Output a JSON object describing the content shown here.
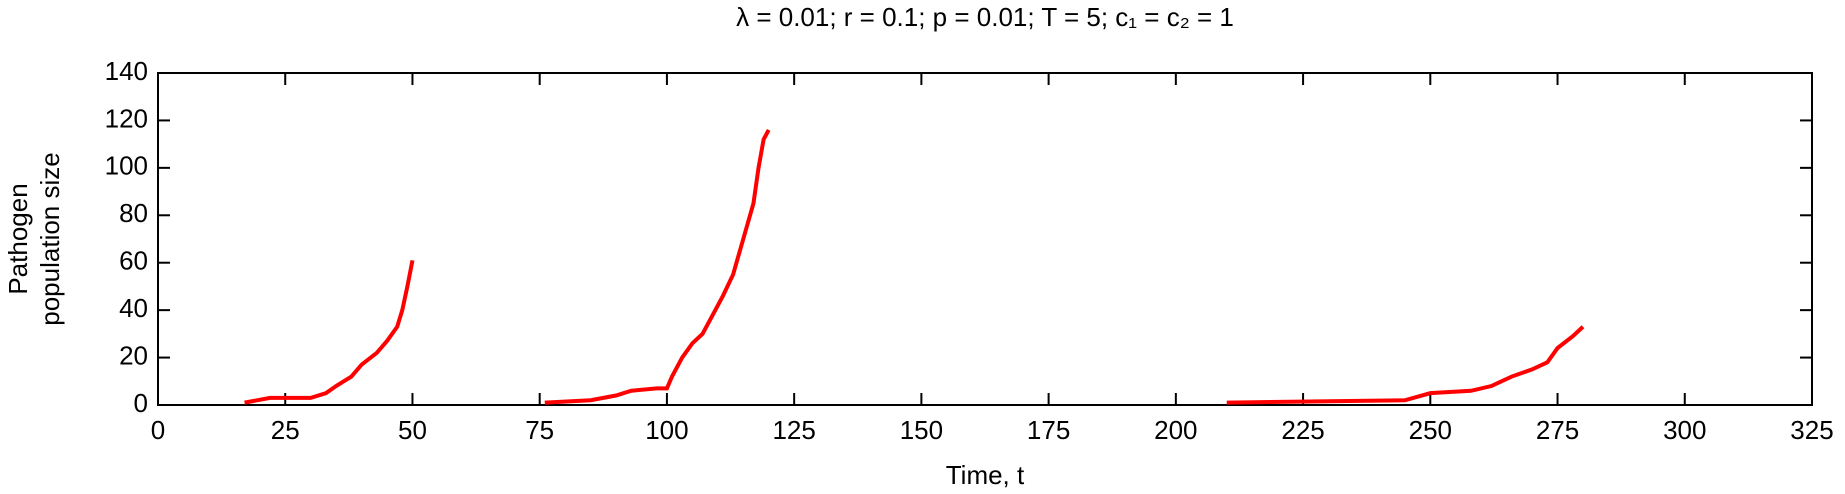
{
  "chart_data": {
    "type": "line",
    "title": "λ = 0.01;  r = 0.1;  p = 0.01;  T = 5;  c₁ = c₂ = 1",
    "xlabel": "Time, t",
    "ylabel": [
      "Pathogen",
      "population size"
    ],
    "x": [
      17,
      22,
      30,
      33,
      35,
      38,
      40,
      43,
      45,
      47,
      48,
      49,
      50,
      60,
      76,
      85,
      90,
      93,
      98,
      100,
      101,
      103,
      105,
      107,
      109,
      111,
      113,
      115,
      117,
      118,
      119,
      120,
      180,
      210,
      245,
      250,
      258,
      262,
      266,
      270,
      273,
      275,
      278,
      280
    ],
    "series": [
      {
        "name": "Pathogen population",
        "color": "#ff0000",
        "values": [
          1,
          3,
          3,
          5,
          8,
          12,
          17,
          22,
          27,
          33,
          40,
          50,
          61,
          null,
          1,
          2,
          4,
          6,
          7,
          7,
          12,
          20,
          26,
          30,
          38,
          46,
          55,
          70,
          85,
          100,
          112,
          116,
          null,
          1,
          2,
          5,
          6,
          8,
          12,
          15,
          18,
          24,
          29,
          33
        ]
      }
    ],
    "xlim": [
      0,
      325
    ],
    "ylim": [
      0,
      140
    ],
    "xticks": [
      0,
      25,
      50,
      75,
      100,
      125,
      150,
      175,
      200,
      225,
      250,
      275,
      300,
      325
    ],
    "yticks": [
      0,
      20,
      40,
      60,
      80,
      100,
      120,
      140
    ],
    "grid": false
  }
}
